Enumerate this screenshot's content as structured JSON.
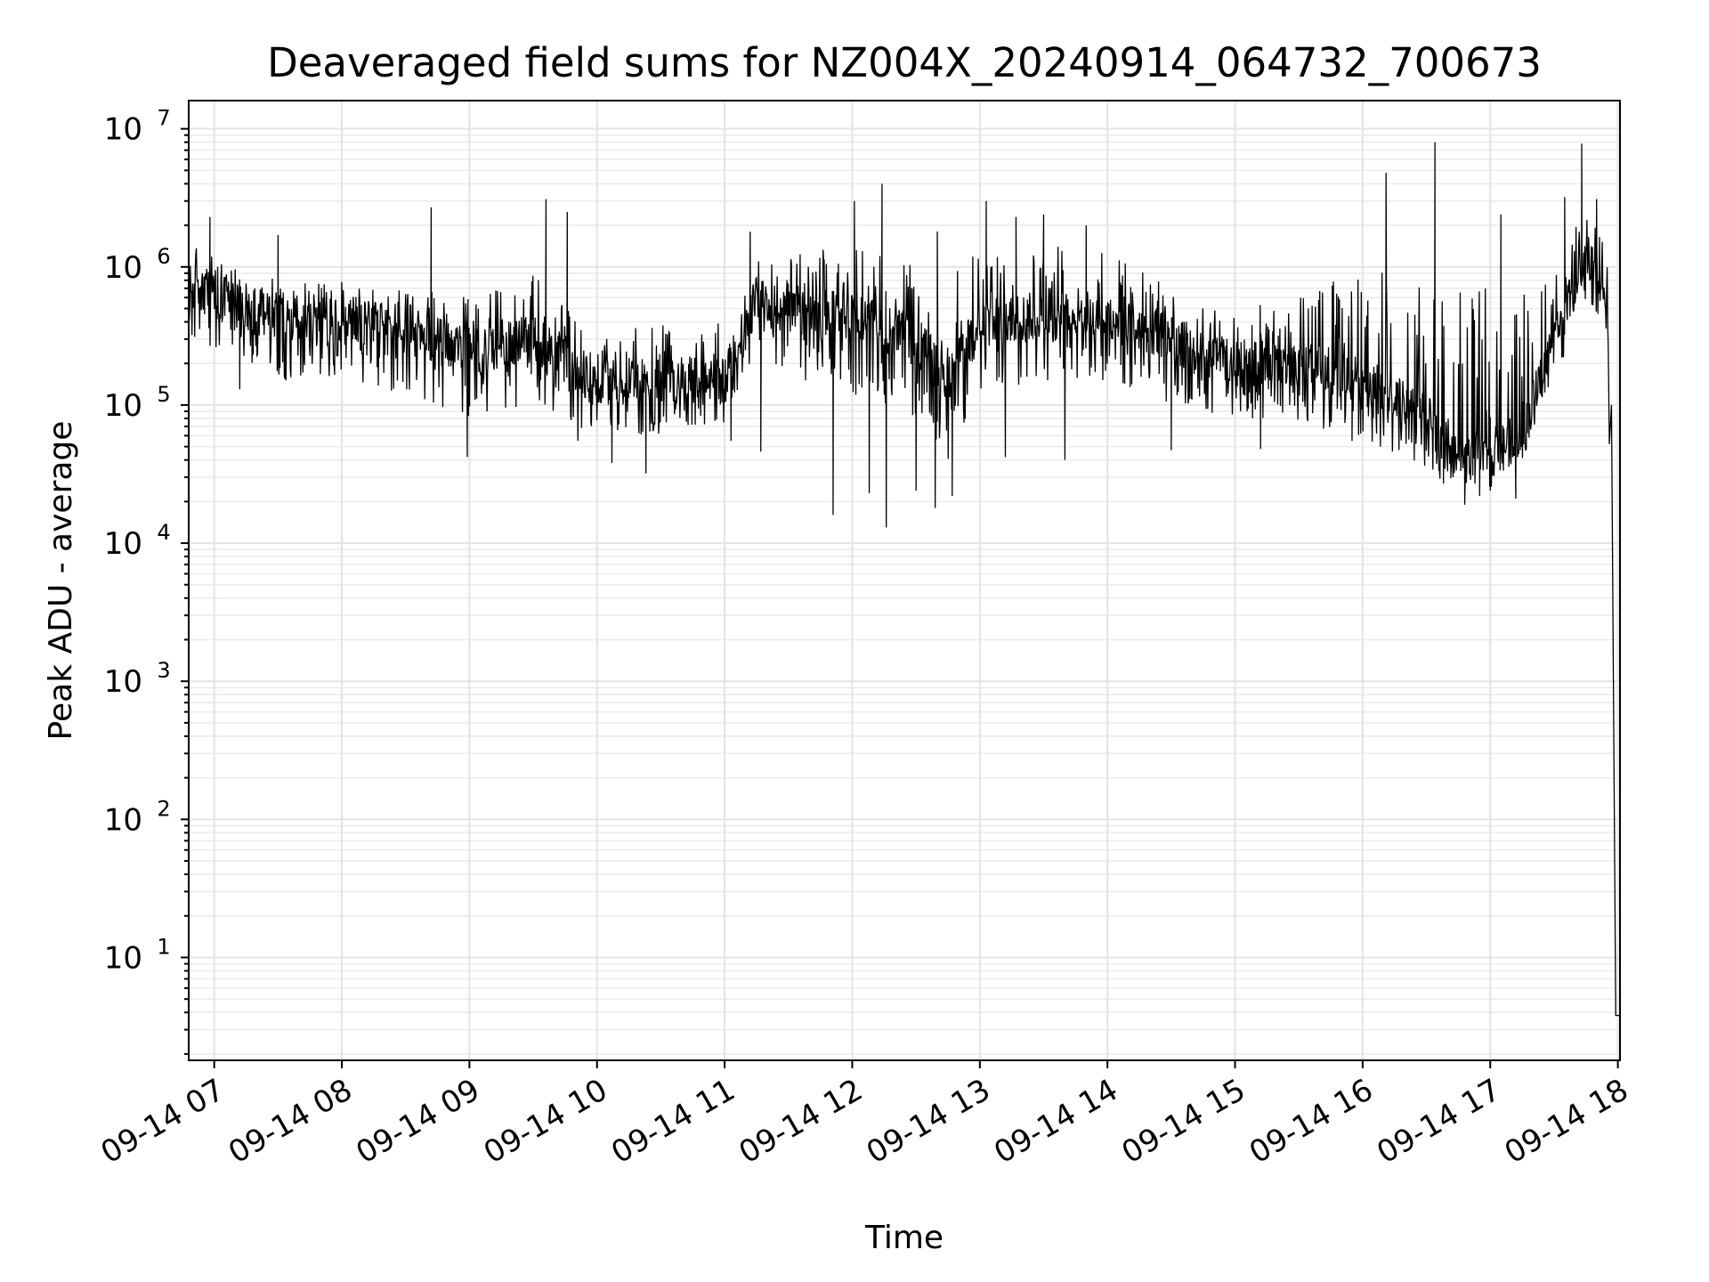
{
  "chart_data": {
    "type": "line",
    "title": "Deaveraged field sums for NZ004X_20240914_064732_700673",
    "xlabel": "Time",
    "ylabel": "Peak ADU - average",
    "yscale": "log",
    "xlim": [
      "2024-09-14T06:48:00",
      "2024-09-14T18:01:00"
    ],
    "ylim": [
      1.8,
      16000000
    ],
    "x_tick_labels": [
      "09-14 07",
      "09-14 08",
      "09-14 09",
      "09-14 10",
      "09-14 11",
      "09-14 12",
      "09-14 13",
      "09-14 14",
      "09-14 15",
      "09-14 16",
      "09-14 17",
      "09-14 18"
    ],
    "y_ticks": [
      {
        "base": "10",
        "exp": "1"
      },
      {
        "base": "10",
        "exp": "2"
      },
      {
        "base": "10",
        "exp": "3"
      },
      {
        "base": "10",
        "exp": "4"
      },
      {
        "base": "10",
        "exp": "5"
      },
      {
        "base": "10",
        "exp": "6"
      },
      {
        "base": "10",
        "exp": "7"
      }
    ],
    "grid": true,
    "series": [
      {
        "color": "#000000",
        "envelope_x": [
          "06:48",
          "07:00",
          "07:30",
          "08:00",
          "08:30",
          "09:00",
          "09:30",
          "10:00",
          "10:30",
          "11:00",
          "11:15",
          "11:30",
          "12:00",
          "12:30",
          "12:45",
          "13:00",
          "13:30",
          "14:00",
          "14:30",
          "15:00",
          "15:30",
          "16:00",
          "16:30",
          "16:45",
          "17:00",
          "17:15",
          "17:30",
          "17:45",
          "17:55",
          "18:00",
          "18:01"
        ],
        "envelope_mid": [
          700000,
          600000,
          450000,
          400000,
          350000,
          250000,
          300000,
          150000,
          150000,
          150000,
          600000,
          450000,
          450000,
          300000,
          150000,
          400000,
          450000,
          450000,
          300000,
          200000,
          200000,
          150000,
          80000,
          45000,
          45000,
          60000,
          300000,
          1200000,
          700000,
          3.8,
          3.8
        ],
        "envelope_low": [
          300000,
          200000,
          150000,
          150000,
          120000,
          80000,
          100000,
          60000,
          60000,
          70000,
          250000,
          150000,
          120000,
          80000,
          40000,
          120000,
          150000,
          150000,
          100000,
          80000,
          70000,
          60000,
          30000,
          25000,
          25000,
          40000,
          150000,
          500000,
          300000,
          3.8,
          3.8
        ],
        "envelope_high": [
          1500000,
          1200000,
          800000,
          800000,
          700000,
          600000,
          900000,
          400000,
          400000,
          400000,
          1100000,
          1200000,
          1500000,
          1000000,
          800000,
          1400000,
          1500000,
          1300000,
          700000,
          500000,
          600000,
          1000000,
          900000,
          700000,
          700000,
          700000,
          1200000,
          2500000,
          1500000,
          3.8,
          3.8
        ],
        "peaks": [
          {
            "x": "06:58",
            "y": 2300000
          },
          {
            "x": "07:30",
            "y": 1700000
          },
          {
            "x": "08:42",
            "y": 2700000
          },
          {
            "x": "09:36",
            "y": 3100000
          },
          {
            "x": "09:46",
            "y": 2500000
          },
          {
            "x": "11:12",
            "y": 1800000
          },
          {
            "x": "12:01",
            "y": 3000000
          },
          {
            "x": "12:14",
            "y": 4000000
          },
          {
            "x": "12:40",
            "y": 1800000
          },
          {
            "x": "13:03",
            "y": 3000000
          },
          {
            "x": "13:17",
            "y": 2300000
          },
          {
            "x": "13:30",
            "y": 2400000
          },
          {
            "x": "13:50",
            "y": 2000000
          },
          {
            "x": "16:11",
            "y": 4800000
          },
          {
            "x": "16:34",
            "y": 8000000
          },
          {
            "x": "17:05",
            "y": 2400000
          },
          {
            "x": "17:35",
            "y": 3200000
          },
          {
            "x": "17:43",
            "y": 7800000
          },
          {
            "x": "17:50",
            "y": 3100000
          }
        ],
        "dips": [
          {
            "x": "07:12",
            "y": 130000
          },
          {
            "x": "08:59",
            "y": 42000
          },
          {
            "x": "09:51",
            "y": 55000
          },
          {
            "x": "10:07",
            "y": 38000
          },
          {
            "x": "10:23",
            "y": 32000
          },
          {
            "x": "11:03",
            "y": 55000
          },
          {
            "x": "11:17",
            "y": 46000
          },
          {
            "x": "11:51",
            "y": 16000
          },
          {
            "x": "12:08",
            "y": 23000
          },
          {
            "x": "12:16",
            "y": 13000
          },
          {
            "x": "12:30",
            "y": 24000
          },
          {
            "x": "12:39",
            "y": 18000
          },
          {
            "x": "12:47",
            "y": 22000
          },
          {
            "x": "13:12",
            "y": 42000
          },
          {
            "x": "13:40",
            "y": 40000
          },
          {
            "x": "14:30",
            "y": 47000
          },
          {
            "x": "15:12",
            "y": 48000
          },
          {
            "x": "15:55",
            "y": 55000
          },
          {
            "x": "16:38",
            "y": 27000
          },
          {
            "x": "16:48",
            "y": 19000
          },
          {
            "x": "16:55",
            "y": 22000
          },
          {
            "x": "17:00",
            "y": 24000
          },
          {
            "x": "17:12",
            "y": 21000
          }
        ]
      }
    ]
  }
}
